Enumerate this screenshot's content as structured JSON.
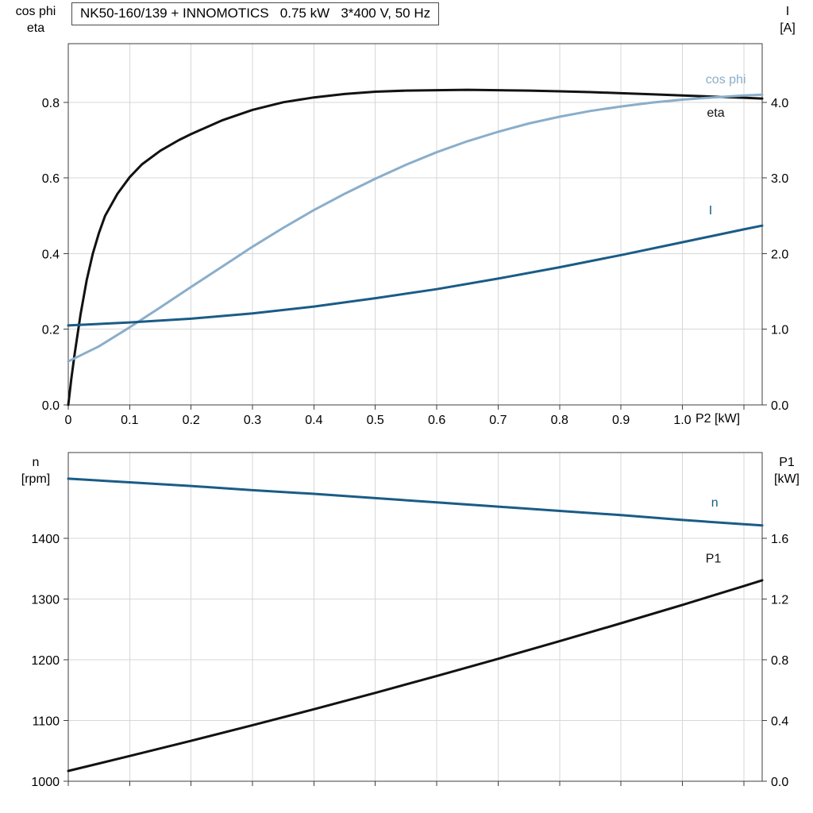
{
  "title": "NK50-160/139 + INNOMOTICS   0.75 kW   3*400 V, 50 Hz",
  "colors": {
    "black": "#121212",
    "light_blue": "#8aaeca",
    "dark_blue": "#1a5c86",
    "grid": "#d7d7d7",
    "axis": "#3f3f3f",
    "text": "#000000"
  },
  "chart_data": [
    {
      "type": "line",
      "title": "Motor efficiency, power factor and current vs shaft power",
      "area": {
        "x0": 86,
        "y0": 55,
        "x1": 960,
        "y1": 510
      },
      "x_axis": {
        "label": "P2 [kW]",
        "range": [
          0,
          1.13
        ],
        "tick_values": [
          0,
          0.1,
          0.2,
          0.3,
          0.4,
          0.5,
          0.6,
          0.7,
          0.8,
          0.9,
          1.0,
          1.1
        ],
        "tick_labels": [
          "0",
          "0.1",
          "0.2",
          "0.3",
          "0.4",
          "0.5",
          "0.6",
          "0.7",
          "0.8",
          "0.9",
          "1.0",
          ""
        ],
        "grid_values": [
          0.1,
          0.2,
          0.3,
          0.4,
          0.5,
          0.6,
          0.7,
          0.8,
          0.9,
          1.0,
          1.1
        ],
        "show_tick_labels": true
      },
      "left_axis": {
        "title_lines": [
          "cos phi",
          "eta"
        ],
        "range": [
          0,
          0.955
        ],
        "tick_values": [
          0,
          0.2,
          0.4,
          0.6,
          0.8
        ],
        "tick_labels": [
          "0.0",
          "0.2",
          "0.4",
          "0.6",
          "0.8"
        ],
        "grid_values": [
          0.2,
          0.4,
          0.6,
          0.8
        ]
      },
      "right_axis": {
        "title_lines": [
          "I",
          "[A]"
        ],
        "range": [
          0,
          4.775
        ],
        "tick_values": [
          0,
          1,
          2,
          3,
          4
        ],
        "tick_labels": [
          "0.0",
          "1.0",
          "2.0",
          "3.0",
          "4.0"
        ]
      },
      "series": [
        {
          "name": "eta",
          "axis": "left",
          "color": "black",
          "label": {
            "text": "eta",
            "x": 1.04,
            "y": 0.762
          },
          "x": [
            0,
            0.005,
            0.01,
            0.02,
            0.03,
            0.04,
            0.05,
            0.06,
            0.08,
            0.1,
            0.12,
            0.15,
            0.18,
            0.2,
            0.25,
            0.3,
            0.35,
            0.4,
            0.45,
            0.5,
            0.55,
            0.6,
            0.65,
            0.7,
            0.75,
            0.8,
            0.85,
            0.9,
            0.95,
            1.0,
            1.05,
            1.1,
            1.13
          ],
          "y": [
            0,
            0.07,
            0.13,
            0.24,
            0.33,
            0.4,
            0.455,
            0.5,
            0.558,
            0.602,
            0.636,
            0.672,
            0.7,
            0.716,
            0.752,
            0.78,
            0.8,
            0.813,
            0.822,
            0.828,
            0.831,
            0.832,
            0.833,
            0.832,
            0.831,
            0.829,
            0.827,
            0.824,
            0.821,
            0.818,
            0.815,
            0.812,
            0.81
          ]
        },
        {
          "name": "cos_phi",
          "axis": "left",
          "color": "light_blue",
          "label": {
            "text": "cos phi",
            "x": 1.038,
            "y": 0.85
          },
          "x": [
            0,
            0.05,
            0.1,
            0.15,
            0.2,
            0.25,
            0.3,
            0.35,
            0.4,
            0.45,
            0.5,
            0.55,
            0.6,
            0.65,
            0.7,
            0.75,
            0.8,
            0.85,
            0.9,
            0.95,
            1.0,
            1.05,
            1.1,
            1.13
          ],
          "y": [
            0.115,
            0.155,
            0.205,
            0.258,
            0.312,
            0.365,
            0.418,
            0.468,
            0.515,
            0.558,
            0.598,
            0.635,
            0.668,
            0.697,
            0.722,
            0.744,
            0.762,
            0.777,
            0.789,
            0.799,
            0.807,
            0.813,
            0.818,
            0.82
          ]
        },
        {
          "name": "I",
          "axis": "right",
          "color": "dark_blue",
          "label": {
            "text": "I",
            "x": 1.043,
            "y": 2.52
          },
          "x": [
            0,
            0.1,
            0.2,
            0.3,
            0.4,
            0.5,
            0.6,
            0.7,
            0.8,
            0.9,
            1.0,
            1.1,
            1.13
          ],
          "y": [
            1.05,
            1.09,
            1.14,
            1.21,
            1.3,
            1.41,
            1.53,
            1.67,
            1.82,
            1.98,
            2.15,
            2.32,
            2.37
          ]
        }
      ]
    },
    {
      "type": "line",
      "title": "Motor speed and input power vs shaft power",
      "area": {
        "x0": 86,
        "y0": 570,
        "x1": 960,
        "y1": 984
      },
      "x_axis": {
        "label": "",
        "range": [
          0,
          1.13
        ],
        "tick_values": [
          0,
          0.1,
          0.2,
          0.3,
          0.4,
          0.5,
          0.6,
          0.7,
          0.8,
          0.9,
          1.0,
          1.1
        ],
        "tick_labels": [
          "",
          "",
          "",
          "",
          "",
          "",
          "",
          "",
          "",
          "",
          "",
          ""
        ],
        "grid_values": [
          0.1,
          0.2,
          0.3,
          0.4,
          0.5,
          0.6,
          0.7,
          0.8,
          0.9,
          1.0,
          1.1
        ],
        "show_tick_labels": false
      },
      "left_axis": {
        "title_lines": [
          "n",
          "[rpm]"
        ],
        "range": [
          1000,
          1541
        ],
        "tick_values": [
          1000,
          1100,
          1200,
          1300,
          1400
        ],
        "tick_labels": [
          "1000",
          "1100",
          "1200",
          "1300",
          "1400"
        ],
        "grid_values": [
          1100,
          1200,
          1300,
          1400
        ]
      },
      "right_axis": {
        "title_lines": [
          "P1",
          "[kW]"
        ],
        "range": [
          0,
          2.164
        ],
        "tick_values": [
          0,
          0.4,
          0.8,
          1.2,
          1.6
        ],
        "tick_labels": [
          "0.0",
          "0.4",
          "0.8",
          "1.2",
          "1.6"
        ]
      },
      "series": [
        {
          "name": "n",
          "axis": "left",
          "color": "dark_blue",
          "label": {
            "text": "n",
            "x": 1.047,
            "y": 1452
          },
          "x": [
            0,
            0.1,
            0.2,
            0.3,
            0.4,
            0.5,
            0.6,
            0.7,
            0.8,
            0.9,
            1.0,
            1.1,
            1.13
          ],
          "y": [
            1498,
            1492,
            1486,
            1479,
            1473,
            1466,
            1459,
            1452,
            1445,
            1438,
            1430,
            1423,
            1421
          ]
        },
        {
          "name": "P1",
          "axis": "right",
          "color": "black",
          "label": {
            "text": "P1",
            "x": 1.038,
            "y": 1.44
          },
          "x": [
            0,
            0.1,
            0.2,
            0.3,
            0.4,
            0.5,
            0.6,
            0.7,
            0.8,
            0.9,
            1.0,
            1.1,
            1.13
          ],
          "y": [
            0.068,
            0.166,
            0.266,
            0.369,
            0.474,
            0.582,
            0.693,
            0.806,
            0.922,
            1.04,
            1.161,
            1.285,
            1.323
          ]
        }
      ]
    }
  ]
}
